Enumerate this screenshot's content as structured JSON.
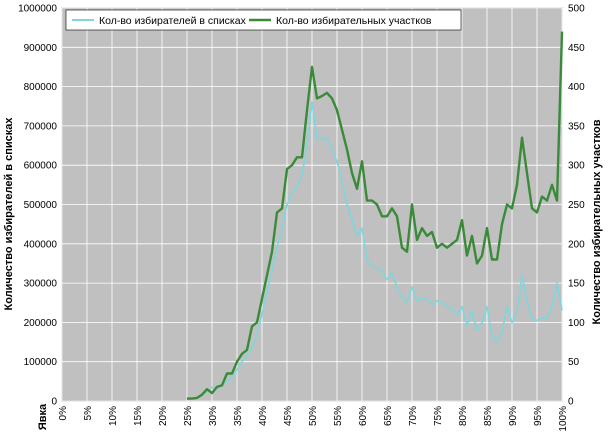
{
  "chart_data": {
    "type": "line",
    "xlabel": "Явка",
    "ylabel_left": "Количество избирателей в списках",
    "ylabel_right": "Количество избирательных участков",
    "x_ticks": [
      "0%",
      "5%",
      "10%",
      "15%",
      "20%",
      "25%",
      "30%",
      "35%",
      "40%",
      "45%",
      "50%",
      "55%",
      "60%",
      "65%",
      "70%",
      "75%",
      "80%",
      "85%",
      "90%",
      "95%",
      "100%"
    ],
    "y_left_ticks": [
      "0",
      "100000",
      "200000",
      "300000",
      "400000",
      "500000",
      "600000",
      "700000",
      "800000",
      "900000",
      "1000000"
    ],
    "y_right_ticks": [
      "0",
      "50",
      "100",
      "150",
      "200",
      "250",
      "300",
      "350",
      "400",
      "450",
      "500"
    ],
    "ylim_left": [
      0,
      1000000
    ],
    "ylim_right": [
      0,
      500
    ],
    "xlim": [
      0,
      100
    ],
    "grid": true,
    "legend_position": "top-left",
    "series": [
      {
        "name": "Кол-во избирателей в списках",
        "axis": "left",
        "color": "#7fd6dc",
        "points": [
          [
            25,
            5000
          ],
          [
            26,
            6000
          ],
          [
            27,
            8000
          ],
          [
            28,
            15000
          ],
          [
            29,
            25000
          ],
          [
            30,
            35000
          ],
          [
            31,
            30000
          ],
          [
            32,
            40000
          ],
          [
            33,
            50000
          ],
          [
            34,
            60000
          ],
          [
            35,
            80000
          ],
          [
            36,
            100000
          ],
          [
            37,
            115000
          ],
          [
            38,
            135000
          ],
          [
            39,
            170000
          ],
          [
            40,
            220000
          ],
          [
            41,
            280000
          ],
          [
            42,
            330000
          ],
          [
            43,
            390000
          ],
          [
            44,
            440000
          ],
          [
            45,
            500000
          ],
          [
            46,
            530000
          ],
          [
            47,
            545000
          ],
          [
            48,
            575000
          ],
          [
            49,
            650000
          ],
          [
            50,
            760000
          ],
          [
            51,
            670000
          ],
          [
            52,
            665000
          ],
          [
            53,
            670000
          ],
          [
            54,
            640000
          ],
          [
            55,
            610000
          ],
          [
            56,
            560000
          ],
          [
            57,
            500000
          ],
          [
            58,
            460000
          ],
          [
            59,
            420000
          ],
          [
            60,
            440000
          ],
          [
            61,
            360000
          ],
          [
            62,
            340000
          ],
          [
            63,
            340000
          ],
          [
            64,
            330000
          ],
          [
            65,
            310000
          ],
          [
            66,
            325000
          ],
          [
            67,
            290000
          ],
          [
            68,
            265000
          ],
          [
            69,
            250000
          ],
          [
            70,
            290000
          ],
          [
            71,
            255000
          ],
          [
            72,
            260000
          ],
          [
            73,
            260000
          ],
          [
            74,
            245000
          ],
          [
            75,
            255000
          ],
          [
            76,
            250000
          ],
          [
            77,
            240000
          ],
          [
            78,
            235000
          ],
          [
            79,
            220000
          ],
          [
            80,
            240000
          ],
          [
            81,
            190000
          ],
          [
            82,
            230000
          ],
          [
            83,
            180000
          ],
          [
            84,
            200000
          ],
          [
            85,
            240000
          ],
          [
            86,
            165000
          ],
          [
            87,
            150000
          ],
          [
            88,
            175000
          ],
          [
            89,
            240000
          ],
          [
            90,
            200000
          ],
          [
            91,
            230000
          ],
          [
            92,
            320000
          ],
          [
            93,
            255000
          ],
          [
            94,
            210000
          ],
          [
            95,
            205000
          ],
          [
            96,
            210000
          ],
          [
            97,
            210000
          ],
          [
            98,
            240000
          ],
          [
            99,
            300000
          ],
          [
            100,
            230000
          ]
        ]
      },
      {
        "name": "Кол-во избирательных участков",
        "axis": "right",
        "color": "#3a8a3a",
        "points": [
          [
            25,
            3
          ],
          [
            26,
            3
          ],
          [
            27,
            4
          ],
          [
            28,
            8
          ],
          [
            29,
            15
          ],
          [
            30,
            10
          ],
          [
            31,
            18
          ],
          [
            32,
            20
          ],
          [
            33,
            35
          ],
          [
            34,
            35
          ],
          [
            35,
            50
          ],
          [
            36,
            60
          ],
          [
            37,
            65
          ],
          [
            38,
            95
          ],
          [
            39,
            100
          ],
          [
            40,
            130
          ],
          [
            41,
            160
          ],
          [
            42,
            190
          ],
          [
            43,
            240
          ],
          [
            44,
            245
          ],
          [
            45,
            295
          ],
          [
            46,
            300
          ],
          [
            47,
            310
          ],
          [
            48,
            310
          ],
          [
            49,
            370
          ],
          [
            50,
            425
          ],
          [
            51,
            385
          ],
          [
            52,
            388
          ],
          [
            53,
            392
          ],
          [
            54,
            385
          ],
          [
            55,
            370
          ],
          [
            56,
            345
          ],
          [
            57,
            320
          ],
          [
            58,
            290
          ],
          [
            59,
            270
          ],
          [
            60,
            305
          ],
          [
            61,
            255
          ],
          [
            62,
            255
          ],
          [
            63,
            250
          ],
          [
            64,
            235
          ],
          [
            65,
            235
          ],
          [
            66,
            245
          ],
          [
            67,
            235
          ],
          [
            68,
            195
          ],
          [
            69,
            190
          ],
          [
            70,
            250
          ],
          [
            71,
            205
          ],
          [
            72,
            220
          ],
          [
            73,
            210
          ],
          [
            74,
            215
          ],
          [
            75,
            195
          ],
          [
            76,
            200
          ],
          [
            77,
            195
          ],
          [
            78,
            200
          ],
          [
            79,
            205
          ],
          [
            80,
            230
          ],
          [
            81,
            185
          ],
          [
            82,
            210
          ],
          [
            83,
            175
          ],
          [
            84,
            185
          ],
          [
            85,
            220
          ],
          [
            86,
            180
          ],
          [
            87,
            180
          ],
          [
            88,
            225
          ],
          [
            89,
            250
          ],
          [
            90,
            245
          ],
          [
            91,
            275
          ],
          [
            92,
            335
          ],
          [
            93,
            290
          ],
          [
            94,
            245
          ],
          [
            95,
            240
          ],
          [
            96,
            260
          ],
          [
            97,
            255
          ],
          [
            98,
            275
          ],
          [
            99,
            255
          ],
          [
            100,
            470
          ]
        ]
      }
    ]
  }
}
